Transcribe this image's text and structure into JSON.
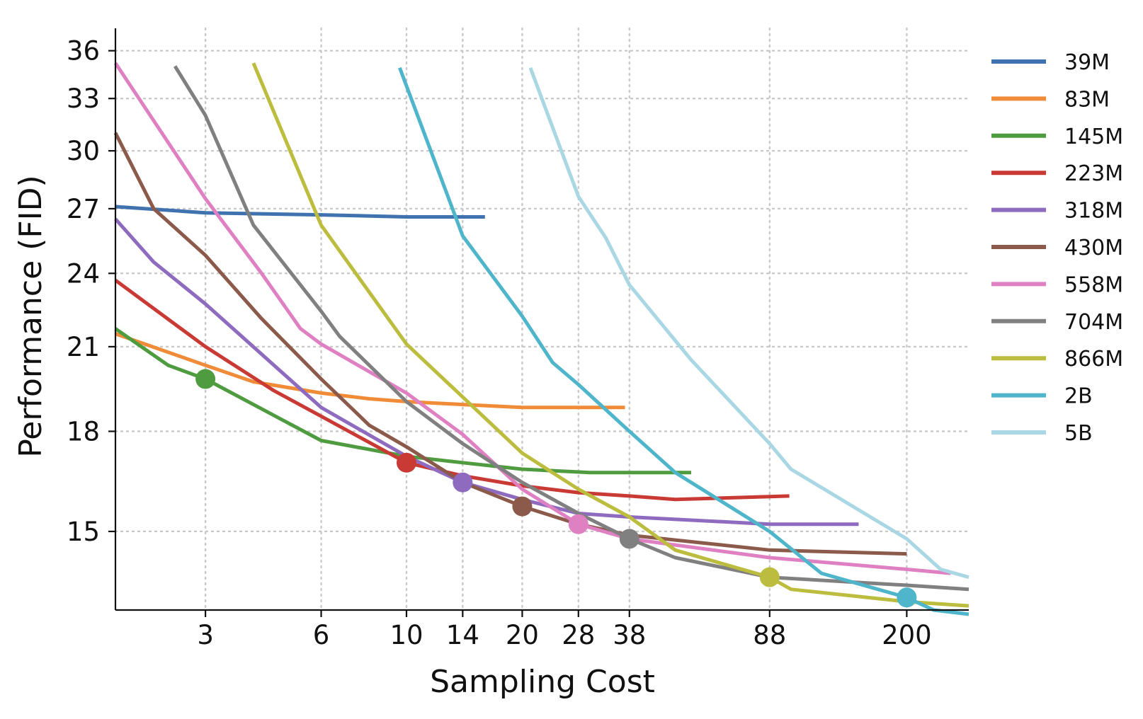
{
  "chart_data": {
    "type": "line",
    "title": "",
    "xlabel": "Sampling Cost",
    "ylabel": "Performance (FID)",
    "x_scale": "log",
    "y_scale": "log",
    "xlim": [
      1.75,
      290
    ],
    "ylim": [
      13.0,
      37.5
    ],
    "x_ticks": [
      3,
      6,
      10,
      14,
      20,
      28,
      38,
      88,
      200
    ],
    "x_tick_labels": [
      "3",
      "6",
      "10",
      "14",
      "20",
      "28",
      "38",
      "88",
      "200"
    ],
    "y_ticks": [
      15,
      18,
      21,
      24,
      27,
      30,
      33,
      36
    ],
    "y_tick_labels": [
      "15",
      "18",
      "21",
      "24",
      "27",
      "30",
      "33",
      "36"
    ],
    "grid": true,
    "legend_position": "right",
    "series": [
      {
        "name": "39M",
        "color": "#3f72ae",
        "points": [
          [
            1.75,
            27.1
          ],
          [
            3,
            26.8
          ],
          [
            6,
            26.7
          ],
          [
            10,
            26.6
          ],
          [
            14,
            26.6
          ],
          [
            16,
            26.6
          ]
        ],
        "marker": null
      },
      {
        "name": "83M",
        "color": "#f08b38",
        "points": [
          [
            1.75,
            21.5
          ],
          [
            3,
            20.3
          ],
          [
            4,
            19.7
          ],
          [
            6,
            19.3
          ],
          [
            8,
            19.1
          ],
          [
            10,
            19.0
          ],
          [
            14,
            18.9
          ],
          [
            20,
            18.8
          ],
          [
            28,
            18.8
          ],
          [
            37,
            18.8
          ]
        ],
        "marker": null
      },
      {
        "name": "145M",
        "color": "#4e9c3f",
        "points": [
          [
            1.75,
            21.7
          ],
          [
            2.4,
            20.3
          ],
          [
            3,
            19.8
          ],
          [
            6,
            17.7
          ],
          [
            10,
            17.2
          ],
          [
            14,
            17.0
          ],
          [
            20,
            16.8
          ],
          [
            30,
            16.7
          ],
          [
            40,
            16.7
          ],
          [
            55,
            16.7
          ]
        ],
        "marker": [
          3,
          19.8
        ]
      },
      {
        "name": "223M",
        "color": "#c93a35",
        "points": [
          [
            1.75,
            23.7
          ],
          [
            3,
            21.0
          ],
          [
            4.5,
            19.4
          ],
          [
            6,
            18.5
          ],
          [
            10,
            17.0
          ],
          [
            14,
            16.6
          ],
          [
            20,
            16.3
          ],
          [
            28,
            16.1
          ],
          [
            38,
            16.0
          ],
          [
            50,
            15.9
          ],
          [
            99,
            16.0
          ]
        ],
        "marker": [
          10,
          17.0
        ]
      },
      {
        "name": "318M",
        "color": "#8e6bbf",
        "points": [
          [
            1.75,
            26.5
          ],
          [
            2.2,
            24.5
          ],
          [
            3,
            22.7
          ],
          [
            6,
            18.8
          ],
          [
            10,
            17.2
          ],
          [
            14,
            16.4
          ],
          [
            20,
            15.9
          ],
          [
            28,
            15.5
          ],
          [
            38,
            15.4
          ],
          [
            88,
            15.2
          ],
          [
            150,
            15.2
          ]
        ],
        "marker": [
          14,
          16.4
        ]
      },
      {
        "name": "430M",
        "color": "#8c5a4b",
        "points": [
          [
            1.75,
            31.0
          ],
          [
            2.2,
            27.0
          ],
          [
            3,
            24.8
          ],
          [
            4.2,
            22.1
          ],
          [
            6,
            19.8
          ],
          [
            8,
            18.2
          ],
          [
            10,
            17.5
          ],
          [
            14,
            16.4
          ],
          [
            20,
            15.7
          ],
          [
            28,
            15.2
          ],
          [
            38,
            14.9
          ],
          [
            88,
            14.5
          ],
          [
            200,
            14.4
          ]
        ],
        "marker": [
          20,
          15.7
        ]
      },
      {
        "name": "558M",
        "color": "#df80c3",
        "points": [
          [
            1.75,
            35.2
          ],
          [
            3,
            27.5
          ],
          [
            4.2,
            24.0
          ],
          [
            5.3,
            21.7
          ],
          [
            6,
            21.1
          ],
          [
            10,
            19.3
          ],
          [
            14,
            17.9
          ],
          [
            20,
            16.2
          ],
          [
            28,
            15.2
          ],
          [
            38,
            14.8
          ],
          [
            88,
            14.3
          ],
          [
            200,
            14.0
          ],
          [
            260,
            13.9
          ]
        ],
        "marker": [
          28,
          15.2
        ]
      },
      {
        "name": "704M",
        "color": "#808080",
        "points": [
          [
            2.5,
            35.0
          ],
          [
            3,
            32.0
          ],
          [
            4,
            26.2
          ],
          [
            6,
            22.4
          ],
          [
            6.7,
            21.4
          ],
          [
            10,
            19.0
          ],
          [
            14,
            17.6
          ],
          [
            20,
            16.4
          ],
          [
            28,
            15.5
          ],
          [
            38,
            14.8
          ],
          [
            50,
            14.3
          ],
          [
            88,
            13.8
          ],
          [
            200,
            13.6
          ],
          [
            290,
            13.5
          ]
        ],
        "marker": [
          38,
          14.8
        ]
      },
      {
        "name": "866M",
        "color": "#bcbd3e",
        "points": [
          [
            4,
            35.2
          ],
          [
            6,
            26.2
          ],
          [
            10,
            21.1
          ],
          [
            20,
            17.3
          ],
          [
            28,
            16.2
          ],
          [
            38,
            15.4
          ],
          [
            50,
            14.5
          ],
          [
            88,
            13.8
          ],
          [
            100,
            13.5
          ],
          [
            200,
            13.2
          ],
          [
            290,
            13.1
          ]
        ],
        "marker": [
          88,
          13.8
        ]
      },
      {
        "name": "2B",
        "color": "#4fb5ca",
        "points": [
          [
            9.6,
            34.9
          ],
          [
            14,
            25.7
          ],
          [
            20,
            22.2
          ],
          [
            24,
            20.4
          ],
          [
            28,
            19.6
          ],
          [
            38,
            18.0
          ],
          [
            50,
            16.7
          ],
          [
            88,
            15.0
          ],
          [
            120,
            13.9
          ],
          [
            200,
            13.3
          ],
          [
            235,
            13.0
          ],
          [
            290,
            12.9
          ]
        ],
        "marker": [
          200,
          13.3
        ]
      },
      {
        "name": "5B",
        "color": "#a9d7e3",
        "points": [
          [
            21,
            34.9
          ],
          [
            28,
            27.6
          ],
          [
            33,
            25.6
          ],
          [
            38,
            23.5
          ],
          [
            55,
            20.5
          ],
          [
            88,
            17.6
          ],
          [
            100,
            16.8
          ],
          [
            200,
            14.8
          ],
          [
            245,
            14.0
          ],
          [
            290,
            13.8
          ]
        ],
        "marker": null
      }
    ]
  }
}
